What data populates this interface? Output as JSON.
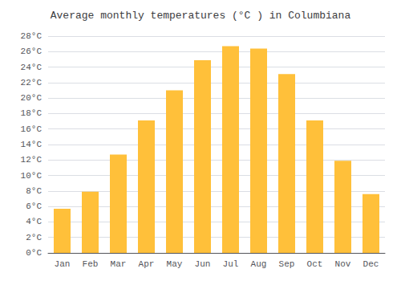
{
  "chart_data": {
    "type": "bar",
    "title": "Average monthly temperatures (°C ) in Columbiana",
    "categories": [
      "Jan",
      "Feb",
      "Mar",
      "Apr",
      "May",
      "Jun",
      "Jul",
      "Aug",
      "Sep",
      "Oct",
      "Nov",
      "Dec"
    ],
    "values": [
      5.7,
      7.9,
      12.7,
      17.1,
      21.0,
      24.9,
      26.7,
      26.4,
      23.1,
      17.1,
      11.9,
      7.6
    ],
    "color": "#FFC03A",
    "ylim": [
      0,
      28
    ],
    "yticks": [
      {
        "value": 0,
        "label": "0°C"
      },
      {
        "value": 2,
        "label": "2°C"
      },
      {
        "value": 4,
        "label": "4°C"
      },
      {
        "value": 6,
        "label": "6°C"
      },
      {
        "value": 8,
        "label": "8°C"
      },
      {
        "value": 10,
        "label": "10°C"
      },
      {
        "value": 12,
        "label": "12°C"
      },
      {
        "value": 14,
        "label": "14°C"
      },
      {
        "value": 16,
        "label": "16°C"
      },
      {
        "value": 18,
        "label": "18°C"
      },
      {
        "value": 20,
        "label": "20°C"
      },
      {
        "value": 22,
        "label": "22°C"
      },
      {
        "value": 24,
        "label": "24°C"
      },
      {
        "value": 26,
        "label": "26°C"
      },
      {
        "value": 28,
        "label": "28°C"
      }
    ],
    "grid": true
  }
}
